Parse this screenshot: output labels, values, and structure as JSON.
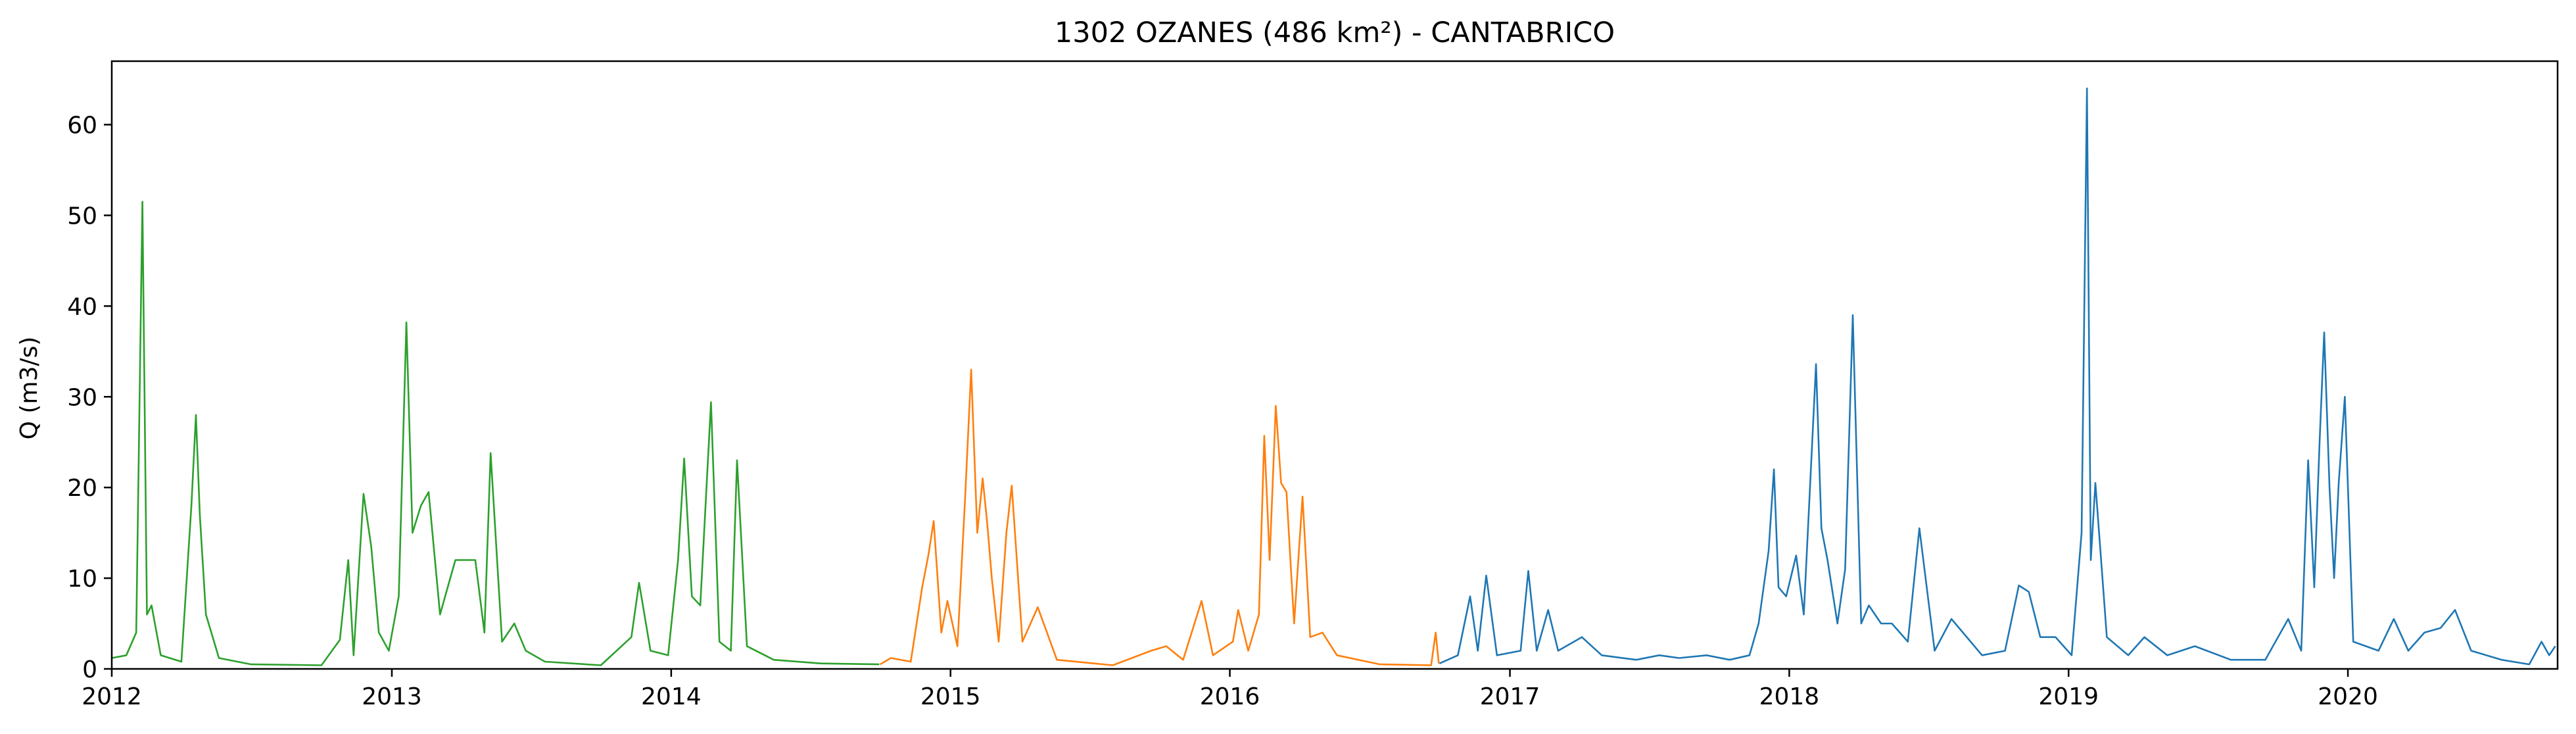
{
  "chart_data": {
    "type": "line",
    "title": "1302 OZANES (486 km²) - CANTABRICO",
    "xlabel": "",
    "ylabel": "Q (m3/s)",
    "x_axis": "date",
    "xlim": [
      "2012-01-01",
      "2020-10-01"
    ],
    "ylim": [
      0,
      67
    ],
    "x_ticks": [
      "2012",
      "2013",
      "2014",
      "2015",
      "2016",
      "2017",
      "2018",
      "2019",
      "2020"
    ],
    "y_ticks": [
      0,
      10,
      20,
      30,
      40,
      50,
      60
    ],
    "grid": false,
    "legend": "none",
    "series": [
      {
        "color": "#2ca02c",
        "points": [
          [
            "2012-01-01",
            1.2
          ],
          [
            "2012-01-20",
            1.5
          ],
          [
            "2012-02-02",
            4.0
          ],
          [
            "2012-02-10",
            51.5
          ],
          [
            "2012-02-16",
            6.0
          ],
          [
            "2012-02-22",
            7.0
          ],
          [
            "2012-03-05",
            1.5
          ],
          [
            "2012-04-01",
            0.8
          ],
          [
            "2012-04-14",
            18.0
          ],
          [
            "2012-04-20",
            28.0
          ],
          [
            "2012-04-25",
            17.0
          ],
          [
            "2012-05-03",
            6.0
          ],
          [
            "2012-05-20",
            1.2
          ],
          [
            "2012-07-01",
            0.5
          ],
          [
            "2012-10-01",
            0.4
          ],
          [
            "2012-10-25",
            3.2
          ],
          [
            "2012-11-05",
            12.0
          ],
          [
            "2012-11-12",
            1.5
          ],
          [
            "2012-11-25",
            19.3
          ],
          [
            "2012-12-05",
            13.5
          ],
          [
            "2012-12-15",
            4.0
          ],
          [
            "2012-12-28",
            2.0
          ],
          [
            "2013-01-10",
            8.0
          ],
          [
            "2013-01-20",
            38.2
          ],
          [
            "2013-01-28",
            15.0
          ],
          [
            "2013-02-08",
            18.0
          ],
          [
            "2013-02-18",
            19.5
          ],
          [
            "2013-03-05",
            6.0
          ],
          [
            "2013-03-25",
            12.0
          ],
          [
            "2013-04-10",
            12.0
          ],
          [
            "2013-04-20",
            12.0
          ],
          [
            "2013-05-02",
            4.0
          ],
          [
            "2013-05-10",
            23.8
          ],
          [
            "2013-05-25",
            3.0
          ],
          [
            "2013-06-10",
            5.0
          ],
          [
            "2013-06-25",
            2.0
          ],
          [
            "2013-07-20",
            0.8
          ],
          [
            "2013-10-01",
            0.4
          ],
          [
            "2013-11-10",
            3.5
          ],
          [
            "2013-11-20",
            9.5
          ],
          [
            "2013-12-05",
            2.0
          ],
          [
            "2013-12-28",
            1.5
          ],
          [
            "2014-01-10",
            12.0
          ],
          [
            "2014-01-18",
            23.2
          ],
          [
            "2014-01-28",
            8.0
          ],
          [
            "2014-02-08",
            7.0
          ],
          [
            "2014-02-22",
            29.4
          ],
          [
            "2014-03-05",
            3.0
          ],
          [
            "2014-03-20",
            2.0
          ],
          [
            "2014-03-28",
            23.0
          ],
          [
            "2014-04-10",
            2.5
          ],
          [
            "2014-05-15",
            1.0
          ],
          [
            "2014-07-15",
            0.6
          ],
          [
            "2014-09-30",
            0.5
          ]
        ]
      },
      {
        "color": "#ff7f0e",
        "points": [
          [
            "2014-10-01",
            0.5
          ],
          [
            "2014-10-15",
            1.2
          ],
          [
            "2014-11-10",
            0.8
          ],
          [
            "2014-11-25",
            9.0
          ],
          [
            "2014-12-03",
            12.5
          ],
          [
            "2014-12-10",
            16.3
          ],
          [
            "2014-12-20",
            4.0
          ],
          [
            "2014-12-28",
            7.5
          ],
          [
            "2015-01-10",
            2.5
          ],
          [
            "2015-01-20",
            18.7
          ],
          [
            "2015-01-28",
            33.0
          ],
          [
            "2015-02-05",
            15.0
          ],
          [
            "2015-02-12",
            21.0
          ],
          [
            "2015-02-18",
            16.0
          ],
          [
            "2015-02-24",
            10.0
          ],
          [
            "2015-03-05",
            3.0
          ],
          [
            "2015-03-15",
            15.0
          ],
          [
            "2015-03-22",
            20.2
          ],
          [
            "2015-04-05",
            3.0
          ],
          [
            "2015-04-25",
            6.8
          ],
          [
            "2015-05-20",
            1.0
          ],
          [
            "2015-08-01",
            0.4
          ],
          [
            "2015-09-20",
            2.0
          ],
          [
            "2015-10-10",
            2.5
          ],
          [
            "2015-11-01",
            1.0
          ],
          [
            "2015-11-25",
            7.5
          ],
          [
            "2015-12-10",
            1.5
          ],
          [
            "2016-01-05",
            3.0
          ],
          [
            "2016-01-12",
            6.5
          ],
          [
            "2016-01-25",
            2.0
          ],
          [
            "2016-02-08",
            6.0
          ],
          [
            "2016-02-15",
            25.7
          ],
          [
            "2016-02-22",
            12.0
          ],
          [
            "2016-03-01",
            29.0
          ],
          [
            "2016-03-08",
            20.5
          ],
          [
            "2016-03-15",
            19.5
          ],
          [
            "2016-03-25",
            5.0
          ],
          [
            "2016-04-05",
            19.0
          ],
          [
            "2016-04-15",
            3.5
          ],
          [
            "2016-05-01",
            4.0
          ],
          [
            "2016-05-20",
            1.5
          ],
          [
            "2016-07-15",
            0.5
          ],
          [
            "2016-09-20",
            0.4
          ],
          [
            "2016-09-26",
            4.0
          ],
          [
            "2016-09-30",
            0.6
          ]
        ]
      },
      {
        "color": "#1f77b4",
        "points": [
          [
            "2016-10-01",
            0.6
          ],
          [
            "2016-10-25",
            1.5
          ],
          [
            "2016-11-10",
            8.0
          ],
          [
            "2016-11-20",
            2.0
          ],
          [
            "2016-12-01",
            10.3
          ],
          [
            "2016-12-15",
            1.5
          ],
          [
            "2017-01-15",
            2.0
          ],
          [
            "2017-01-25",
            10.8
          ],
          [
            "2017-02-05",
            2.0
          ],
          [
            "2017-02-20",
            6.5
          ],
          [
            "2017-03-05",
            2.0
          ],
          [
            "2017-04-05",
            3.5
          ],
          [
            "2017-05-01",
            1.5
          ],
          [
            "2017-06-15",
            1.0
          ],
          [
            "2017-07-15",
            1.5
          ],
          [
            "2017-08-10",
            1.2
          ],
          [
            "2017-09-15",
            1.5
          ],
          [
            "2017-10-15",
            1.0
          ],
          [
            "2017-11-10",
            1.5
          ],
          [
            "2017-11-22",
            5.0
          ],
          [
            "2017-12-05",
            13.0
          ],
          [
            "2017-12-12",
            22.0
          ],
          [
            "2017-12-18",
            9.0
          ],
          [
            "2017-12-28",
            8.0
          ],
          [
            "2018-01-10",
            12.5
          ],
          [
            "2018-01-20",
            6.0
          ],
          [
            "2018-02-05",
            33.6
          ],
          [
            "2018-02-12",
            15.5
          ],
          [
            "2018-02-20",
            12.0
          ],
          [
            "2018-03-05",
            5.0
          ],
          [
            "2018-03-15",
            11.0
          ],
          [
            "2018-03-25",
            39.0
          ],
          [
            "2018-04-05",
            5.0
          ],
          [
            "2018-04-15",
            7.0
          ],
          [
            "2018-05-01",
            5.0
          ],
          [
            "2018-05-15",
            5.0
          ],
          [
            "2018-06-05",
            3.0
          ],
          [
            "2018-06-20",
            15.5
          ],
          [
            "2018-07-10",
            2.0
          ],
          [
            "2018-08-01",
            5.5
          ],
          [
            "2018-09-10",
            1.5
          ],
          [
            "2018-10-10",
            2.0
          ],
          [
            "2018-10-28",
            9.2
          ],
          [
            "2018-11-10",
            8.5
          ],
          [
            "2018-11-25",
            3.5
          ],
          [
            "2018-12-15",
            3.5
          ],
          [
            "2019-01-05",
            1.5
          ],
          [
            "2019-01-18",
            15.0
          ],
          [
            "2019-01-25",
            64.0
          ],
          [
            "2019-01-30",
            12.0
          ],
          [
            "2019-02-05",
            20.5
          ],
          [
            "2019-02-20",
            3.5
          ],
          [
            "2019-03-20",
            1.5
          ],
          [
            "2019-04-10",
            3.5
          ],
          [
            "2019-05-10",
            1.5
          ],
          [
            "2019-06-15",
            2.5
          ],
          [
            "2019-08-01",
            1.0
          ],
          [
            "2019-09-15",
            1.0
          ],
          [
            "2019-10-15",
            5.5
          ],
          [
            "2019-11-01",
            2.0
          ],
          [
            "2019-11-10",
            23.0
          ],
          [
            "2019-11-18",
            9.0
          ],
          [
            "2019-11-25",
            25.0
          ],
          [
            "2019-12-01",
            37.1
          ],
          [
            "2019-12-08",
            20.0
          ],
          [
            "2019-12-14",
            10.0
          ],
          [
            "2019-12-20",
            20.5
          ],
          [
            "2019-12-28",
            30.0
          ],
          [
            "2020-01-08",
            3.0
          ],
          [
            "2020-02-10",
            2.0
          ],
          [
            "2020-03-01",
            5.5
          ],
          [
            "2020-03-20",
            2.0
          ],
          [
            "2020-04-10",
            4.0
          ],
          [
            "2020-05-01",
            4.5
          ],
          [
            "2020-05-20",
            6.5
          ],
          [
            "2020-06-10",
            2.0
          ],
          [
            "2020-07-20",
            1.0
          ],
          [
            "2020-08-25",
            0.5
          ],
          [
            "2020-09-10",
            3.0
          ],
          [
            "2020-09-20",
            1.5
          ],
          [
            "2020-09-28",
            2.5
          ]
        ]
      }
    ]
  }
}
